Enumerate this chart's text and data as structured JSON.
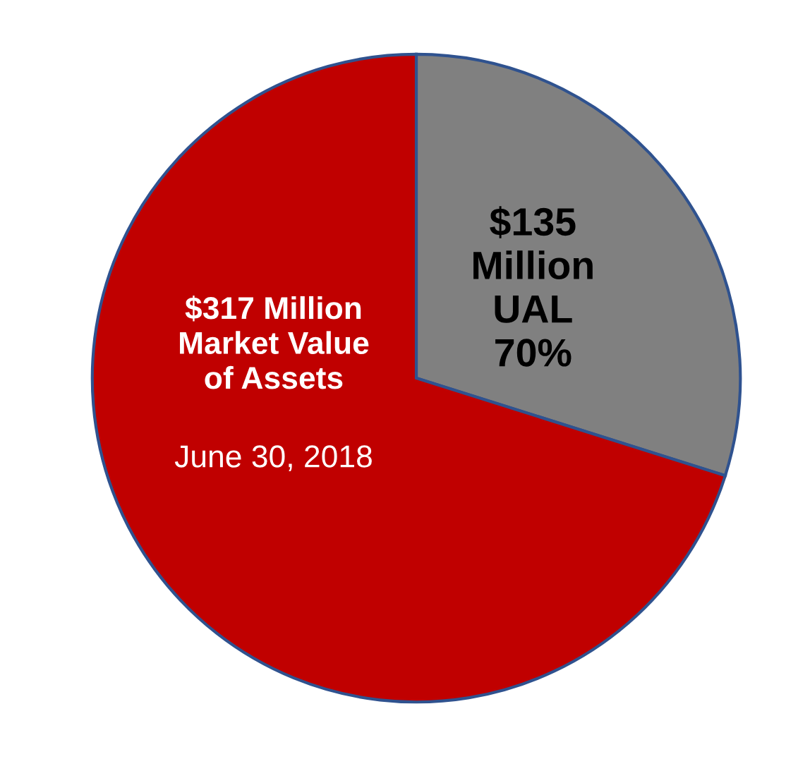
{
  "chart_data": {
    "type": "pie",
    "categories": [
      "$135\nMillion\nUAL\n70%",
      "$317 Million\nMarket Value\nof Assets"
    ],
    "values": [
      135,
      317
    ],
    "colors": [
      "#808080",
      "#c00000"
    ],
    "annotations": [
      "June 30, 2018"
    ]
  }
}
